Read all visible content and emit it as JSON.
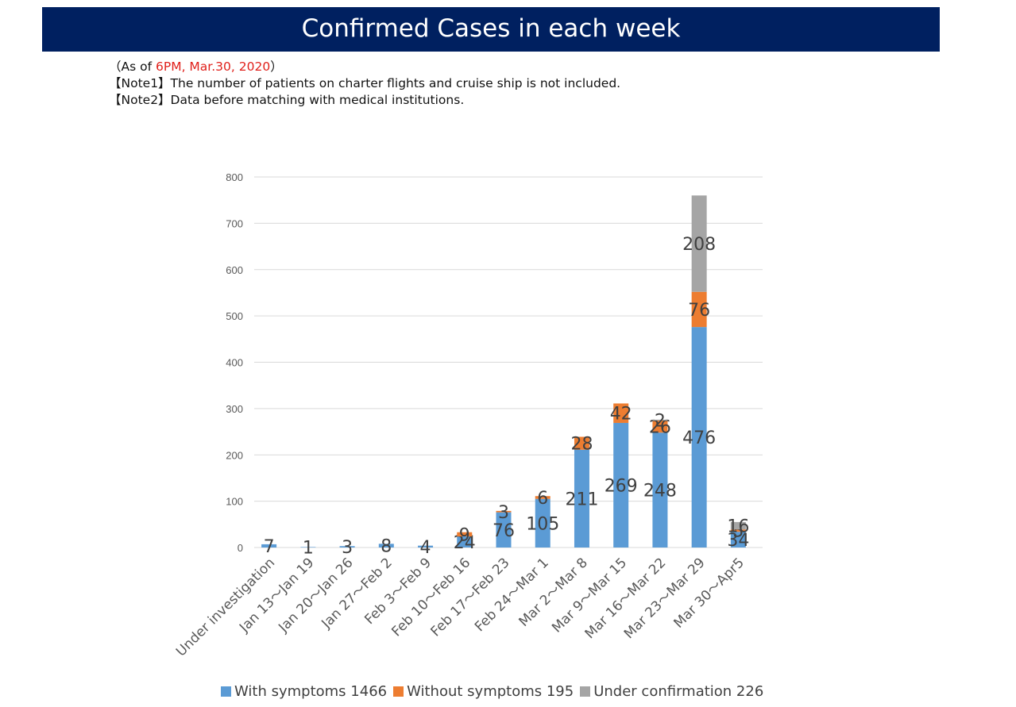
{
  "header": {
    "title": "Confirmed Cases in each week"
  },
  "notes": {
    "as_of_prefix": "（As of ",
    "as_of_value": "6PM, Mar.30, 2020",
    "as_of_suffix": "）",
    "note1": "【Note1】The number of patients on charter flights and cruise ship is not included.",
    "note2": "【Note2】Data before matching with medical institutions."
  },
  "colors": {
    "with": "#5b9bd5",
    "without": "#ed7d31",
    "under": "#a5a5a5",
    "banner": "#002060"
  },
  "chart_data": {
    "type": "bar",
    "stacked": true,
    "title": "Confirmed Cases in each week",
    "xlabel": "",
    "ylabel": "",
    "ylim": [
      0,
      800
    ],
    "yticks": [
      0,
      100,
      200,
      300,
      400,
      500,
      600,
      700,
      800
    ],
    "grid": true,
    "legend_position": "bottom",
    "categories": [
      "Under investigation",
      "Jan 13～Jan 19",
      "Jan 20～Jan 26",
      "Jan 27～Feb 2",
      "Feb 3～Feb 9",
      "Feb 10～Feb 16",
      "Feb 17～Feb 23",
      "Feb 24～Mar 1",
      "Mar 2～Mar 8",
      "Mar 9～Mar 15",
      "Mar 16～Mar 22",
      "Mar 23～Mar 29",
      "Mar 30～Apr5"
    ],
    "series": [
      {
        "name": "With symptoms",
        "legend_label": "With symptoms 1466",
        "values": [
          7,
          1,
          3,
          8,
          4,
          24,
          76,
          105,
          211,
          269,
          248,
          476,
          34
        ]
      },
      {
        "name": "Without symptoms",
        "legend_label": "Without symptoms 195",
        "values": [
          0,
          0,
          0,
          0,
          0,
          9,
          3,
          6,
          28,
          42,
          26,
          76,
          5
        ]
      },
      {
        "name": "Under confirmation",
        "legend_label": "Under confirmation 226",
        "values": [
          0,
          0,
          0,
          0,
          0,
          0,
          0,
          0,
          0,
          0,
          2,
          208,
          16
        ]
      }
    ]
  }
}
